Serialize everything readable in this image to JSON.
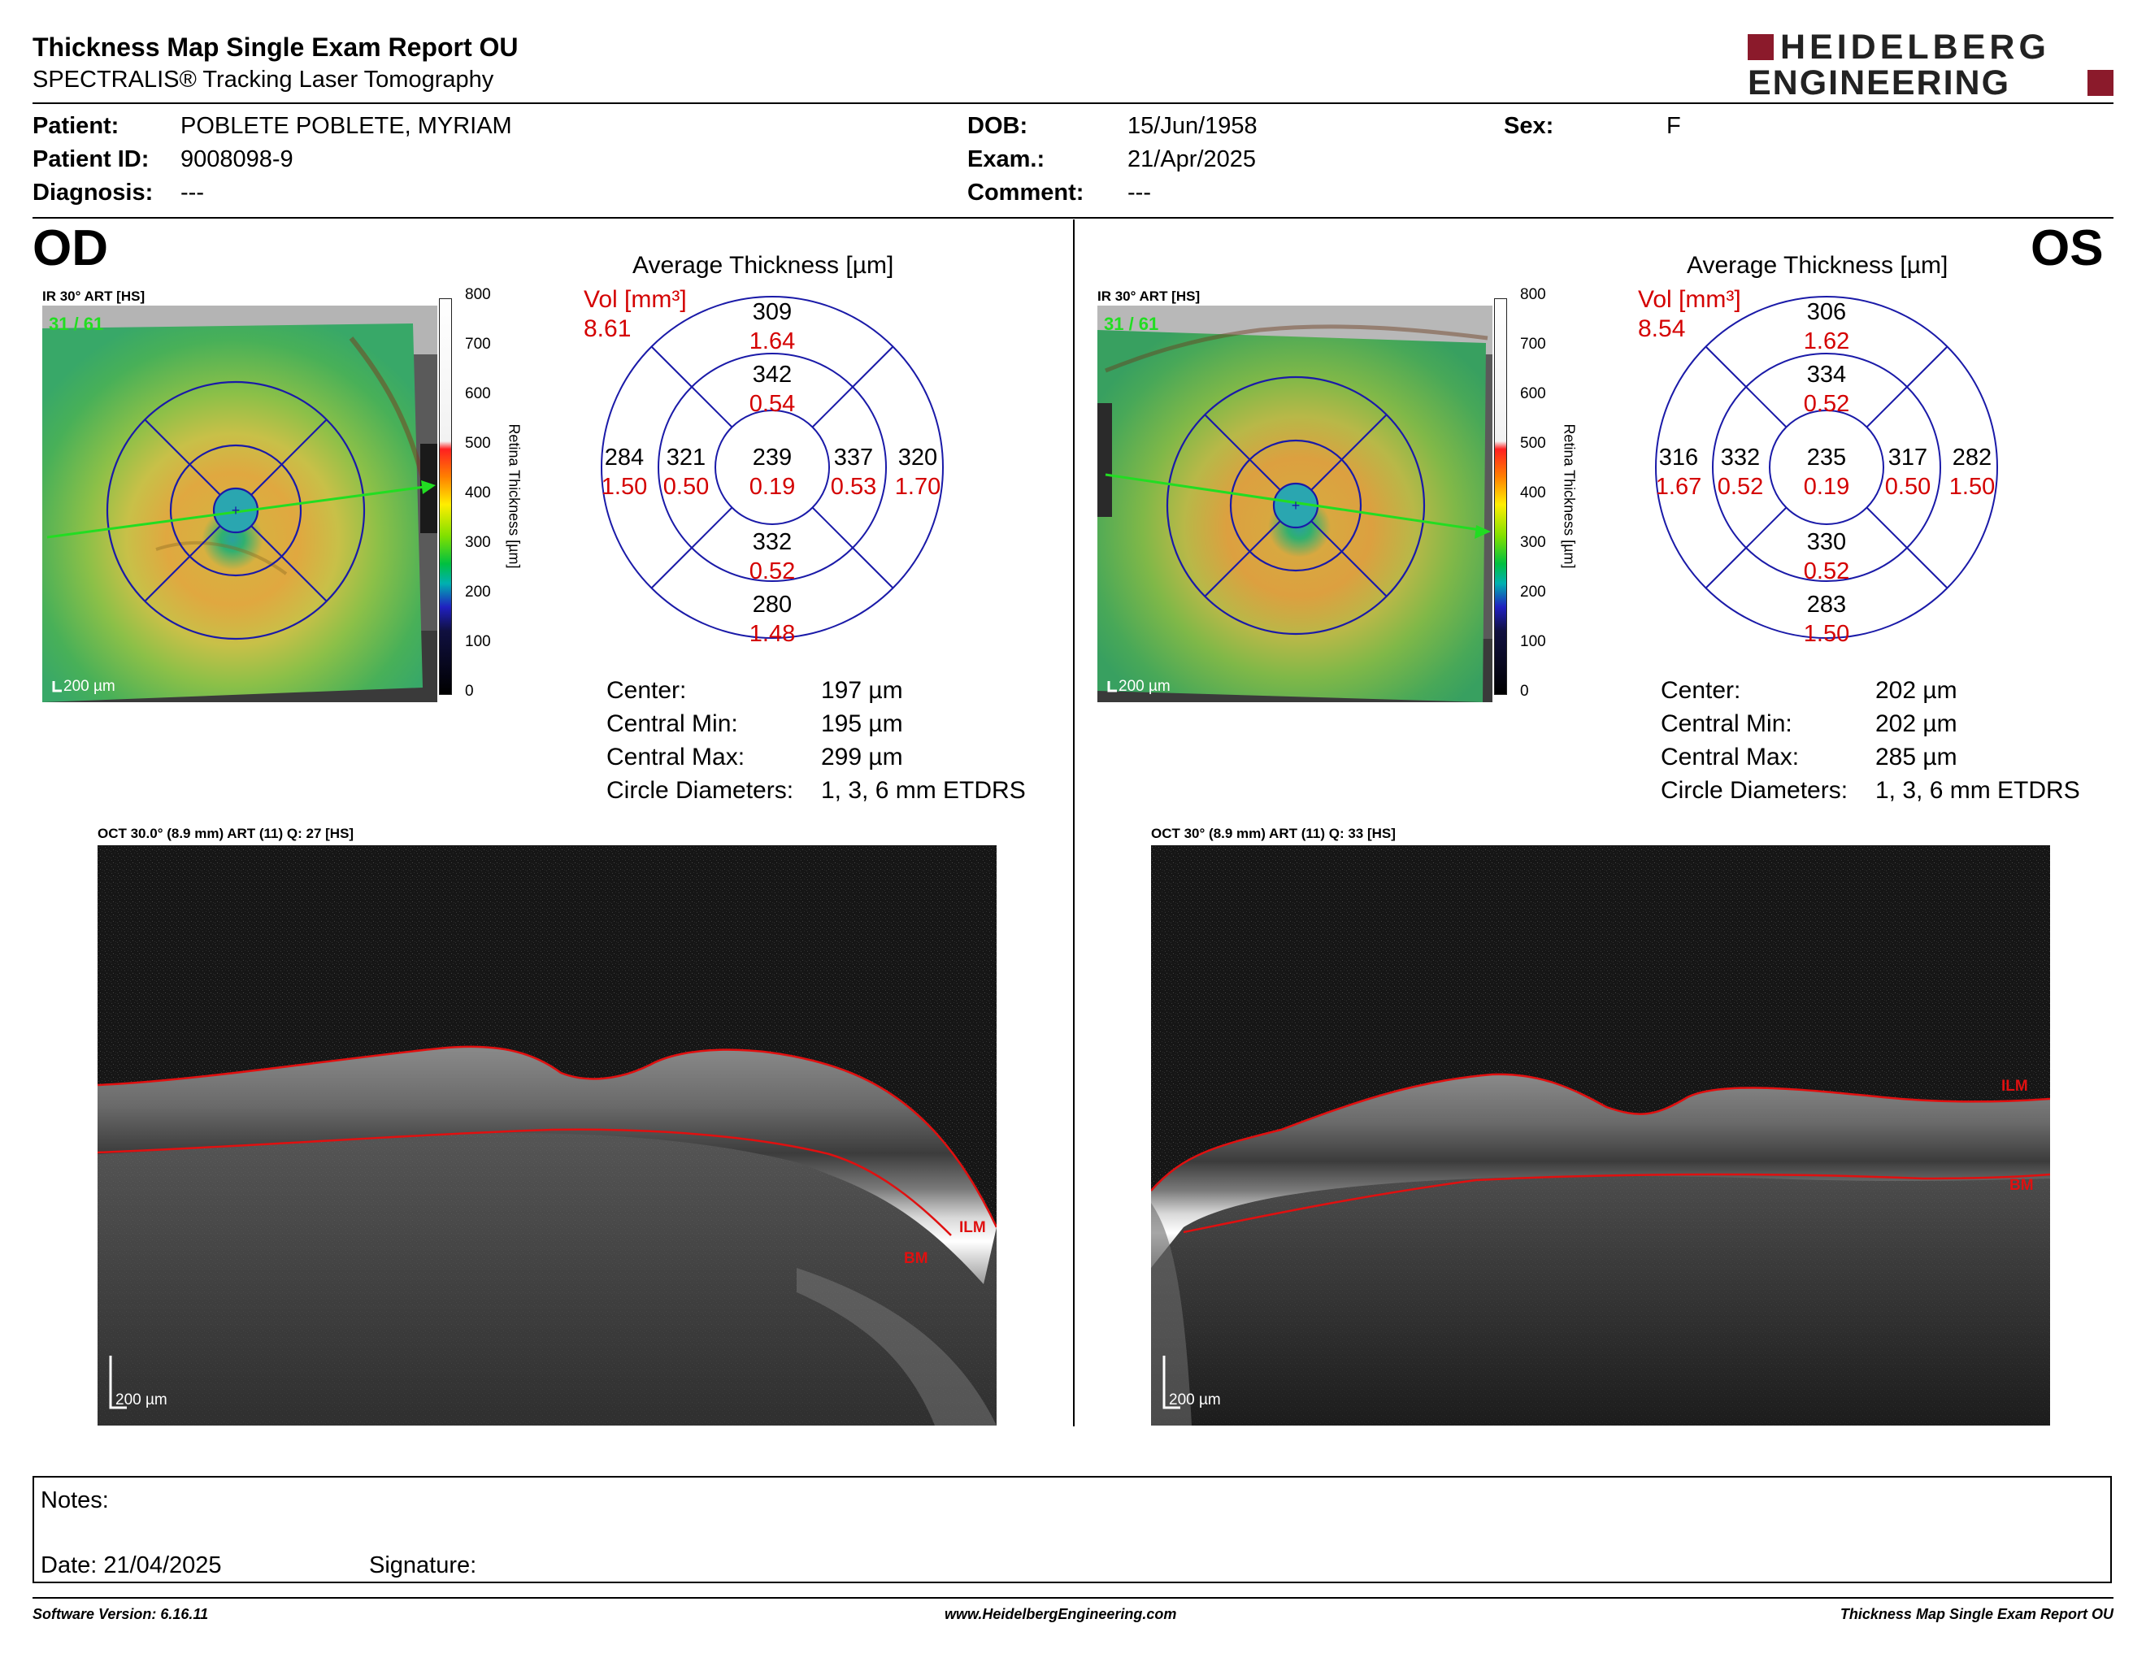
{
  "header": {
    "title": "Thickness Map Single Exam Report OU",
    "subtitle": "SPECTRALIS® Tracking Laser Tomography",
    "logo_line1": "HEIDELBERG",
    "logo_line2": "ENGINEERING"
  },
  "patient": {
    "patient_label": "Patient:",
    "patient_value": "POBLETE POBLETE, MYRIAM",
    "id_label": "Patient ID:",
    "id_value": "9008098-9",
    "diagnosis_label": "Diagnosis:",
    "diagnosis_value": "---",
    "dob_label": "DOB:",
    "dob_value": "15/Jun/1958",
    "exam_label": "Exam.:",
    "exam_value": "21/Apr/2025",
    "comment_label": "Comment:",
    "comment_value": "---",
    "sex_label": "Sex:",
    "sex_value": "F"
  },
  "colorbar": {
    "ticks": [
      "800",
      "700",
      "600",
      "500",
      "400",
      "300",
      "200",
      "100",
      "0"
    ],
    "label": "Retina Thickness [µm]"
  },
  "stat_labels": {
    "center": "Center:",
    "central_min": "Central Min:",
    "central_max": "Central Max:",
    "circle_diameters": "Circle Diameters:"
  },
  "od": {
    "eye": "OD",
    "ir_label": "IR 30° ART [HS]",
    "frame_label": "31 / 61",
    "scale_label": "200 µm",
    "chart_title": "Average Thickness [µm]",
    "vol_label": "Vol [mm³]",
    "vol_total": "8.61",
    "sectors": {
      "outer_sup": {
        "t": "309",
        "v": "1.64"
      },
      "inner_sup": {
        "t": "342",
        "v": "0.54"
      },
      "outer_nasal_left": {
        "t": "284",
        "v": "1.50"
      },
      "inner_left": {
        "t": "321",
        "v": "0.50"
      },
      "center": {
        "t": "239",
        "v": "0.19"
      },
      "inner_right": {
        "t": "337",
        "v": "0.53"
      },
      "outer_right": {
        "t": "320",
        "v": "1.70"
      },
      "inner_inf": {
        "t": "332",
        "v": "0.52"
      },
      "outer_inf": {
        "t": "280",
        "v": "1.48"
      }
    },
    "center_value": "197 µm",
    "central_min_value": "195 µm",
    "central_max_value": "299 µm",
    "circle_diameters_value": "1, 3, 6 mm ETDRS",
    "oct_label": "OCT 30.0° (8.9 mm) ART (11) Q: 27 [HS]",
    "oct_scale_label": "200 µm",
    "ilm_label": "ILM",
    "bm_label": "BM"
  },
  "os": {
    "eye": "OS",
    "ir_label": "IR 30° ART [HS]",
    "frame_label": "31 / 61",
    "scale_label": "200 µm",
    "chart_title": "Average Thickness [µm]",
    "vol_label": "Vol [mm³]",
    "vol_total": "8.54",
    "sectors": {
      "outer_sup": {
        "t": "306",
        "v": "1.62"
      },
      "inner_sup": {
        "t": "334",
        "v": "0.52"
      },
      "outer_nasal_left": {
        "t": "316",
        "v": "1.67"
      },
      "inner_left": {
        "t": "332",
        "v": "0.52"
      },
      "center": {
        "t": "235",
        "v": "0.19"
      },
      "inner_right": {
        "t": "317",
        "v": "0.50"
      },
      "outer_right": {
        "t": "282",
        "v": "1.50"
      },
      "inner_inf": {
        "t": "330",
        "v": "0.52"
      },
      "outer_inf": {
        "t": "283",
        "v": "1.50"
      }
    },
    "center_value": "202 µm",
    "central_min_value": "202 µm",
    "central_max_value": "285 µm",
    "circle_diameters_value": "1, 3, 6 mm ETDRS",
    "oct_label": "OCT 30° (8.9 mm) ART (11) Q: 33 [HS]",
    "oct_scale_label": "200 µm",
    "ilm_label": "ILM",
    "bm_label": "BM"
  },
  "notes": {
    "notes_label": "Notes:",
    "date_label": "Date: 21/04/2025",
    "signature_label": "Signature:"
  },
  "footer": {
    "software": "Software Version: 6.16.11",
    "website": "www.HeidelbergEngineering.com",
    "report": "Thickness Map Single Exam Report OU"
  },
  "colors": {
    "etdrs_line": "#1a1aa8",
    "value_red": "#d40000",
    "scan_line": "#22dd22",
    "segmentation": "#e01010"
  }
}
